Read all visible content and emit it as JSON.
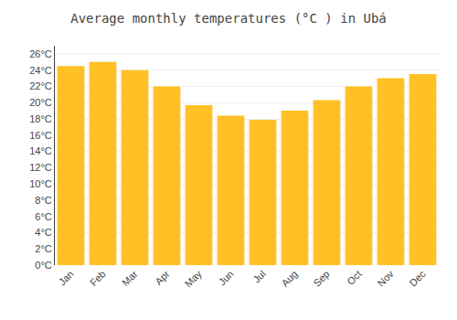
{
  "chart_data": {
    "type": "bar",
    "title": "Average monthly temperatures (°C ) in Ubá",
    "categories": [
      "Jan",
      "Feb",
      "Mar",
      "Apr",
      "May",
      "Jun",
      "Jul",
      "Aug",
      "Sep",
      "Oct",
      "Nov",
      "Dec"
    ],
    "values": [
      24.5,
      25.0,
      24.0,
      22.0,
      19.7,
      18.4,
      17.9,
      19.0,
      20.3,
      22.0,
      23.0,
      23.5
    ],
    "color": "#FFC125",
    "ylim": [
      0,
      27
    ],
    "yticks": [
      {
        "value": 0,
        "label": "0°C"
      },
      {
        "value": 2,
        "label": "2°C"
      },
      {
        "value": 4,
        "label": "4°C"
      },
      {
        "value": 6,
        "label": "6°C"
      },
      {
        "value": 8,
        "label": "8°C"
      },
      {
        "value": 10,
        "label": "10°C"
      },
      {
        "value": 12,
        "label": "12°C"
      },
      {
        "value": 14,
        "label": "14°C"
      },
      {
        "value": 16,
        "label": "16°C"
      },
      {
        "value": 18,
        "label": "18°C"
      },
      {
        "value": 20,
        "label": "20°C"
      },
      {
        "value": 22,
        "label": "22°C"
      },
      {
        "value": 24,
        "label": "24°C"
      },
      {
        "value": 26,
        "label": "26°C"
      }
    ],
    "grid": true
  }
}
